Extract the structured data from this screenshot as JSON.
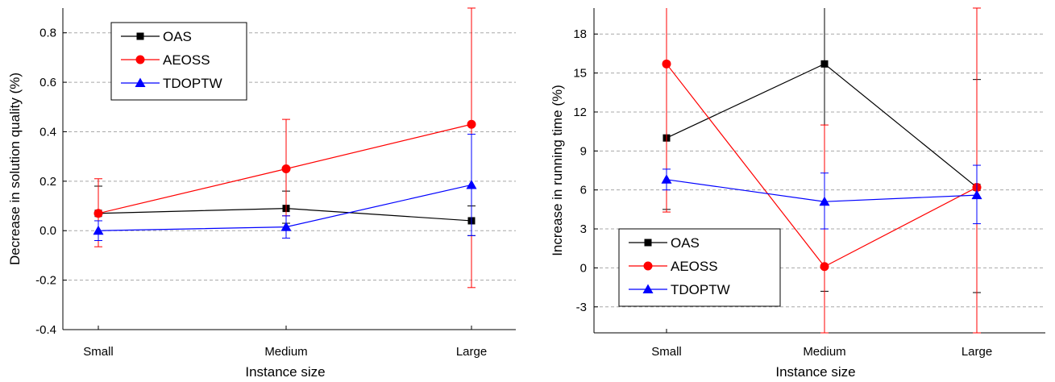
{
  "chart_data": [
    {
      "type": "line",
      "categories": [
        "Small",
        "Medium",
        "Large"
      ],
      "xlabel": "Instance size",
      "ylabel": "Decrease in solution quality (%)",
      "ylim": [
        -0.4,
        0.9
      ],
      "yticks": [
        -0.4,
        -0.2,
        0.0,
        0.2,
        0.4,
        0.6,
        0.8
      ],
      "ytick_labels": [
        "-0.4",
        "-0.2",
        "0.0",
        "0.2",
        "0.4",
        "0.6",
        "0.8"
      ],
      "grid": "horizontal dashed",
      "legend_position": "top-left",
      "series": [
        {
          "name": "OAS",
          "color": "#000000",
          "marker": "square",
          "values": [
            0.07,
            0.09,
            0.04
          ],
          "err_low": [
            -0.04,
            0.03,
            -0.02
          ],
          "err_high": [
            0.18,
            0.16,
            0.1
          ]
        },
        {
          "name": "AEOSS",
          "color": "#ff0000",
          "marker": "circle",
          "values": [
            0.07,
            0.25,
            0.43
          ],
          "err_low": [
            -0.065,
            0.06,
            -0.23
          ],
          "err_high": [
            0.21,
            0.45,
            0.9
          ]
        },
        {
          "name": "TDOPTW",
          "color": "#0000ff",
          "marker": "triangle",
          "values": [
            0.0,
            0.015,
            0.185
          ],
          "err_low": [
            -0.04,
            -0.03,
            -0.02
          ],
          "err_high": [
            0.04,
            0.06,
            0.39
          ]
        }
      ]
    },
    {
      "type": "line",
      "categories": [
        "Small",
        "Medium",
        "Large"
      ],
      "xlabel": "Instance size",
      "ylabel": "Increase in running time (%)",
      "ylim": [
        -5,
        20
      ],
      "yticks": [
        -3,
        0,
        3,
        6,
        9,
        12,
        15,
        18
      ],
      "ytick_labels": [
        "-3",
        "0",
        "3",
        "6",
        "9",
        "12",
        "15",
        "18"
      ],
      "grid": "horizontal dashed",
      "legend_position": "bottom-left",
      "series": [
        {
          "name": "OAS",
          "color": "#000000",
          "marker": "square",
          "values": [
            10.0,
            15.7,
            6.2
          ],
          "err_low": [
            4.5,
            -1.8,
            -1.9
          ],
          "err_high": [
            20.5,
            20.5,
            14.5
          ]
        },
        {
          "name": "AEOSS",
          "color": "#ff0000",
          "marker": "circle",
          "values": [
            15.7,
            0.1,
            6.2
          ],
          "err_low": [
            4.3,
            -5.0,
            -5.0
          ],
          "err_high": [
            20.5,
            11.0,
            20.0
          ]
        },
        {
          "name": "TDOPTW",
          "color": "#0000ff",
          "marker": "triangle",
          "values": [
            6.8,
            5.1,
            5.6
          ],
          "err_low": [
            6.0,
            3.0,
            3.4
          ],
          "err_high": [
            7.6,
            7.3,
            7.9
          ]
        }
      ]
    }
  ]
}
